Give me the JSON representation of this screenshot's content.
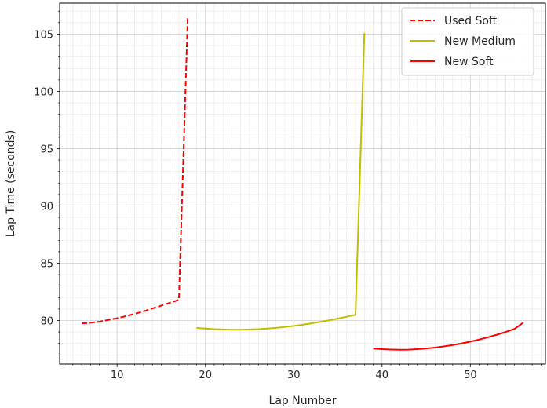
{
  "chart_data": {
    "type": "line",
    "xlabel": "Lap Number",
    "ylabel": "Lap Time (seconds)",
    "xlim": [
      3.5,
      58.5
    ],
    "ylim": [
      76.2,
      107.7
    ],
    "xticks": [
      10,
      20,
      30,
      40,
      50
    ],
    "yticks": [
      80,
      85,
      90,
      95,
      100,
      105
    ],
    "grid": true,
    "minor_grid": true,
    "legend_position": "top-right",
    "series": [
      {
        "name": "Used Soft",
        "color": "#ff0000",
        "dashed": true,
        "x": [
          6,
          7,
          8,
          9,
          10,
          11,
          12,
          13,
          14,
          15,
          16,
          17,
          17.5,
          18
        ],
        "y": [
          79.75,
          79.8,
          79.9,
          80.05,
          80.2,
          80.38,
          80.58,
          80.8,
          81.05,
          81.3,
          81.55,
          81.8,
          94.0,
          106.4
        ]
      },
      {
        "name": "New Medium",
        "color": "#bfbf00",
        "dashed": false,
        "x": [
          19,
          20,
          21,
          22,
          23,
          24,
          25,
          26,
          27,
          28,
          29,
          30,
          31,
          32,
          33,
          34,
          35,
          36,
          37,
          37.5,
          38
        ],
        "y": [
          79.35,
          79.3,
          79.25,
          79.22,
          79.2,
          79.2,
          79.22,
          79.25,
          79.3,
          79.36,
          79.44,
          79.53,
          79.63,
          79.75,
          79.88,
          80.02,
          80.17,
          80.33,
          80.5,
          92.8,
          105.1
        ]
      },
      {
        "name": "New Soft",
        "color": "#ff0000",
        "dashed": false,
        "x": [
          39,
          40,
          41,
          42,
          43,
          44,
          45,
          46,
          47,
          48,
          49,
          50,
          51,
          52,
          53,
          54,
          55,
          56
        ],
        "y": [
          77.55,
          77.5,
          77.47,
          77.45,
          77.46,
          77.5,
          77.56,
          77.64,
          77.74,
          77.86,
          78.0,
          78.16,
          78.34,
          78.54,
          78.76,
          79.0,
          79.27,
          79.82
        ]
      }
    ]
  }
}
